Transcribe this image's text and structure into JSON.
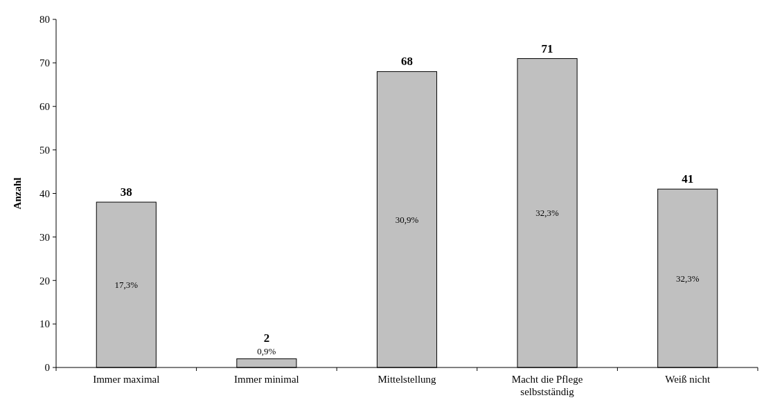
{
  "chart_data": {
    "type": "bar",
    "ylabel": "Anzahl",
    "categories": [
      "Immer maximal",
      "Immer minimal",
      "Mittelstellung",
      "Macht die Pflege selbstständig",
      "Weiß nicht"
    ],
    "values": [
      38,
      2,
      68,
      71,
      41
    ],
    "color": "#c0c0c0",
    "ylim": [
      0,
      80
    ],
    "yticks": [
      0,
      10,
      20,
      30,
      40,
      50,
      60,
      70,
      80
    ],
    "grid": false,
    "data_labels": true,
    "annotations": [
      "17,3%",
      "0,9%",
      "30,9%",
      "32,3%",
      "32,3%"
    ]
  }
}
